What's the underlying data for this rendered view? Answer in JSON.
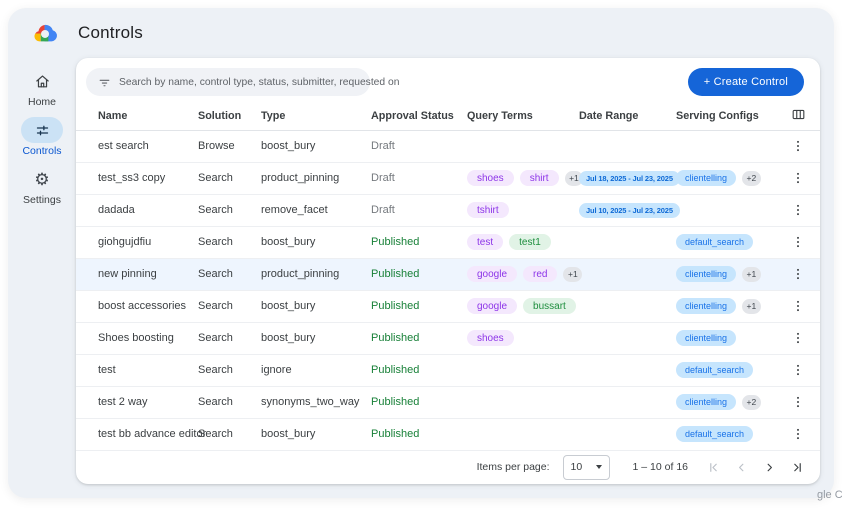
{
  "header": {
    "title": "Controls"
  },
  "sidebar": {
    "items": [
      {
        "id": "home",
        "label": "Home",
        "icon": "home-icon",
        "active": false
      },
      {
        "id": "controls",
        "label": "Controls",
        "icon": "tune-icon",
        "active": true
      },
      {
        "id": "settings",
        "label": "Settings",
        "icon": "gear-icon",
        "active": false
      }
    ]
  },
  "toolbar": {
    "search_placeholder": "Search by name, control type, status, submitter, requested on",
    "create_label": "+  Create Control"
  },
  "table": {
    "columns": [
      "Name",
      "Solution",
      "Type",
      "Approval Status",
      "Query Terms",
      "Date Range",
      "Serving Configs"
    ],
    "rows": [
      {
        "name": "est search",
        "solution": "Browse",
        "type": "boost_bury",
        "status": "Draft",
        "query_terms": [],
        "query_more": "",
        "date_range": "",
        "serving_configs": [],
        "serving_more": "",
        "highlighted": false
      },
      {
        "name": "test_ss3 copy",
        "solution": "Search",
        "type": "product_pinning",
        "status": "Draft",
        "query_terms": [
          {
            "text": "shoes",
            "variant": "purple"
          },
          {
            "text": "shirt",
            "variant": "purple"
          }
        ],
        "query_more": "+1",
        "date_range": "Jul 18, 2025 - Jul 23, 2025",
        "serving_configs": [
          "clientelling"
        ],
        "serving_more": "+2",
        "highlighted": false
      },
      {
        "name": "dadada",
        "solution": "Search",
        "type": "remove_facet",
        "status": "Draft",
        "query_terms": [
          {
            "text": "tshirt",
            "variant": "purple"
          }
        ],
        "query_more": "",
        "date_range": "Jul 10, 2025 - Jul 23, 2025",
        "serving_configs": [],
        "serving_more": "",
        "highlighted": false
      },
      {
        "name": "giohgujdfiu",
        "solution": "Search",
        "type": "boost_bury",
        "status": "Published",
        "query_terms": [
          {
            "text": "test",
            "variant": "purple"
          },
          {
            "text": "test1",
            "variant": "green"
          }
        ],
        "query_more": "",
        "date_range": "",
        "serving_configs": [
          "default_search"
        ],
        "serving_more": "",
        "highlighted": false
      },
      {
        "name": "new pinning",
        "solution": "Search",
        "type": "product_pinning",
        "status": "Published",
        "query_terms": [
          {
            "text": "google",
            "variant": "purple"
          },
          {
            "text": "red",
            "variant": "purple"
          }
        ],
        "query_more": "+1",
        "date_range": "",
        "serving_configs": [
          "clientelling"
        ],
        "serving_more": "+1",
        "highlighted": true
      },
      {
        "name": "boost accessories",
        "solution": "Search",
        "type": "boost_bury",
        "status": "Published",
        "query_terms": [
          {
            "text": "google",
            "variant": "purple"
          },
          {
            "text": "bussart",
            "variant": "green"
          }
        ],
        "query_more": "",
        "date_range": "",
        "serving_configs": [
          "clientelling"
        ],
        "serving_more": "+1",
        "highlighted": false
      },
      {
        "name": "Shoes boosting",
        "solution": "Search",
        "type": "boost_bury",
        "status": "Published",
        "query_terms": [
          {
            "text": "shoes",
            "variant": "purple"
          }
        ],
        "query_more": "",
        "date_range": "",
        "serving_configs": [
          "clientelling"
        ],
        "serving_more": "",
        "highlighted": false
      },
      {
        "name": "test",
        "solution": "Search",
        "type": "ignore",
        "status": "Published",
        "query_terms": [],
        "query_more": "",
        "date_range": "",
        "serving_configs": [
          "default_search"
        ],
        "serving_more": "",
        "highlighted": false
      },
      {
        "name": "test 2 way",
        "solution": "Search",
        "type": "synonyms_two_way",
        "status": "Published",
        "query_terms": [],
        "query_more": "",
        "date_range": "",
        "serving_configs": [
          "clientelling"
        ],
        "serving_more": "+2",
        "highlighted": false
      },
      {
        "name": "test bb advance editor",
        "solution": "Search",
        "type": "boost_bury",
        "status": "Published",
        "query_terms": [],
        "query_more": "",
        "date_range": "",
        "serving_configs": [
          "default_search"
        ],
        "serving_more": "",
        "highlighted": false
      }
    ]
  },
  "pagination": {
    "items_per_page_label": "Items per page:",
    "page_size": "10",
    "range": "1 – 10 of 16"
  },
  "watermark": "gle C",
  "colors": {
    "accent_blue": "#1565d8",
    "active_nav_blue": "#0b57d0",
    "nav_pill_bg": "#cbe2f5",
    "published_green": "#188038",
    "draft_gray": "#75797e",
    "term_purple_bg": "#f4e8fd",
    "term_purple_fg": "#8d34e8",
    "term_green_bg": "#e1f3e6",
    "term_green_fg": "#1e8e3e",
    "chip_blue_bg": "#c6e5fd",
    "chip_blue_fg": "#1a73e8",
    "row_highlight": "#eef5fe",
    "card_bg": "#edf1f6"
  }
}
